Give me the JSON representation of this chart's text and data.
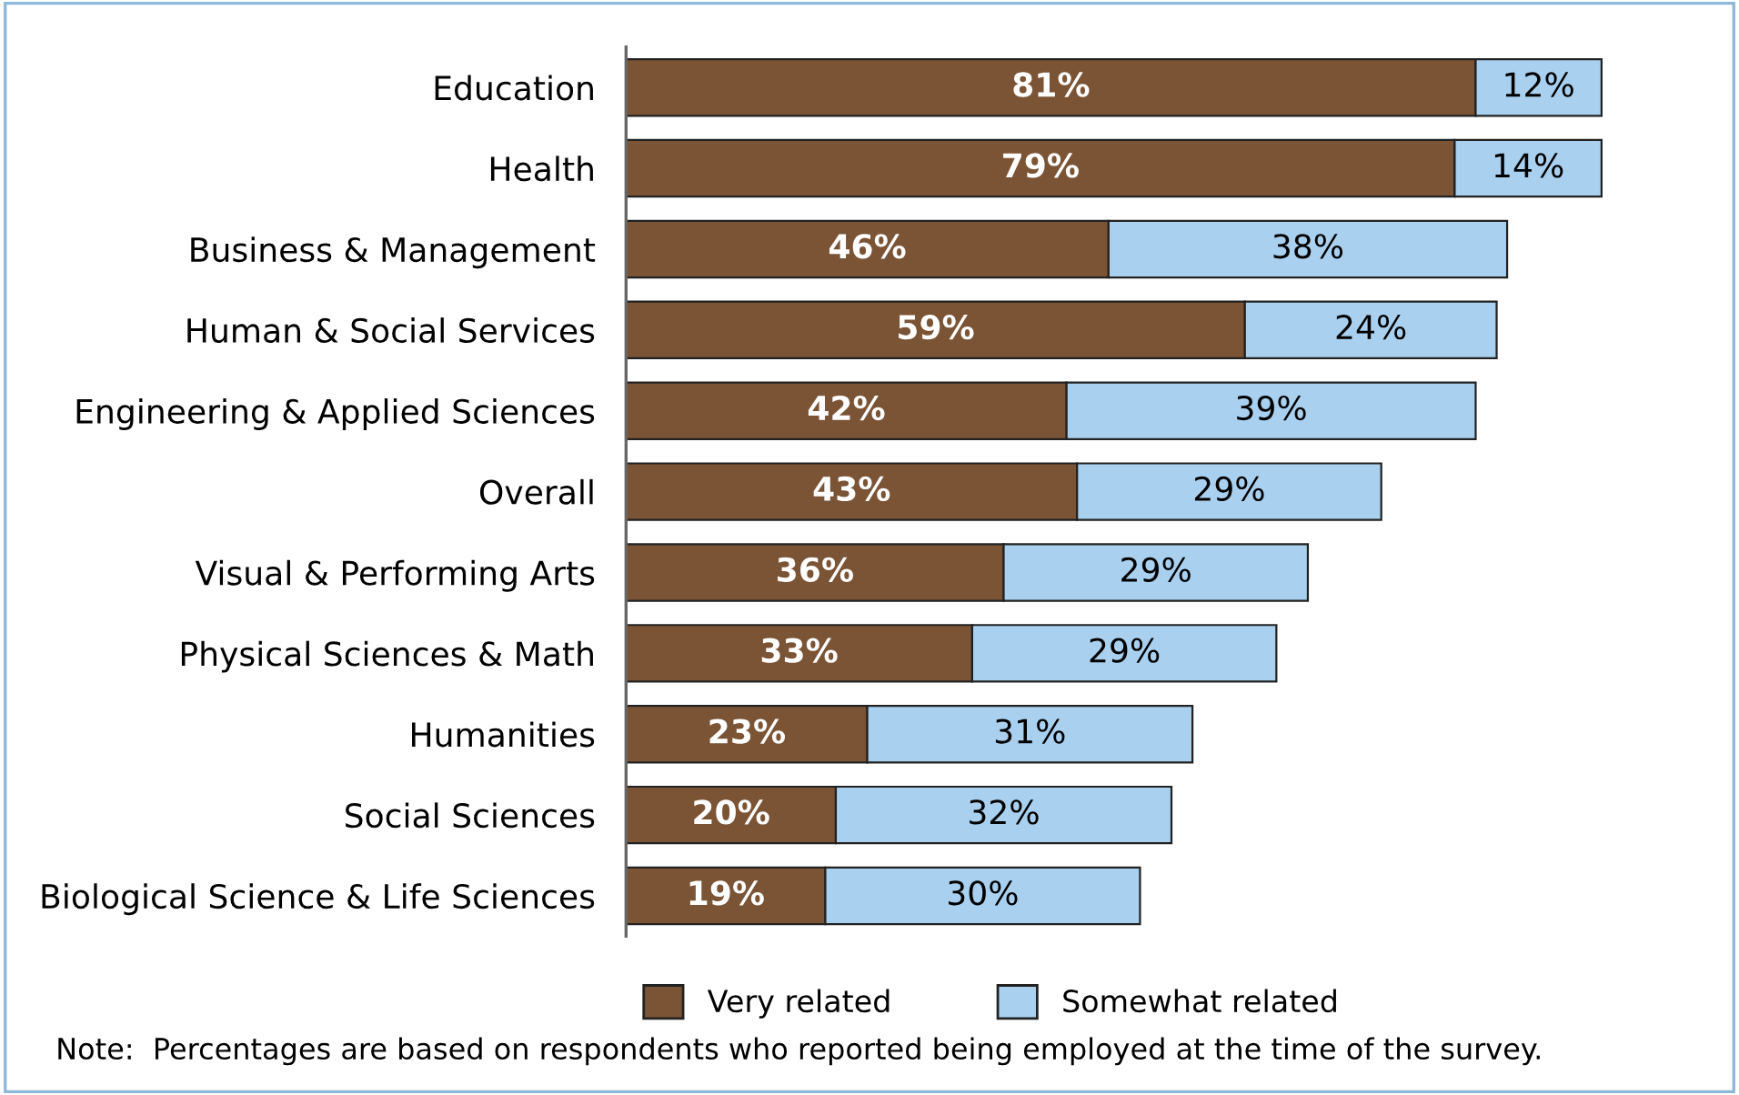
{
  "chart_data": {
    "type": "bar",
    "orientation": "horizontal",
    "stacked": true,
    "legend": "bottom",
    "grid": false,
    "tick_labels": "y",
    "categories": [
      "Education",
      "Health",
      "Business & Management",
      "Human & Social Services",
      "Engineering & Applied Sciences",
      "Overall",
      "Visual & Performing Arts",
      "Physical Sciences & Math",
      "Humanities",
      "Social Sciences",
      "Biological Science & Life Sciences"
    ],
    "series": [
      {
        "name": "Very related",
        "color": "#7b5436",
        "values": [
          81,
          79,
          46,
          59,
          42,
          43,
          36,
          33,
          23,
          20,
          19
        ],
        "value_labels": [
          "81%",
          "79%",
          "46%",
          "59%",
          "42%",
          "43%",
          "36%",
          "33%",
          "23%",
          "20%",
          "19%"
        ]
      },
      {
        "name": "Somewhat related",
        "color": "#a9d0ef",
        "values": [
          12,
          14,
          38,
          24,
          39,
          29,
          29,
          29,
          31,
          32,
          30
        ],
        "value_labels": [
          "12%",
          "14%",
          "38%",
          "24%",
          "39%",
          "29%",
          "29%",
          "29%",
          "31%",
          "32%",
          "30%"
        ]
      }
    ],
    "annotations": [
      "Note:  Percentages are based on respondents who reported being employed at the time of the survey."
    ]
  }
}
